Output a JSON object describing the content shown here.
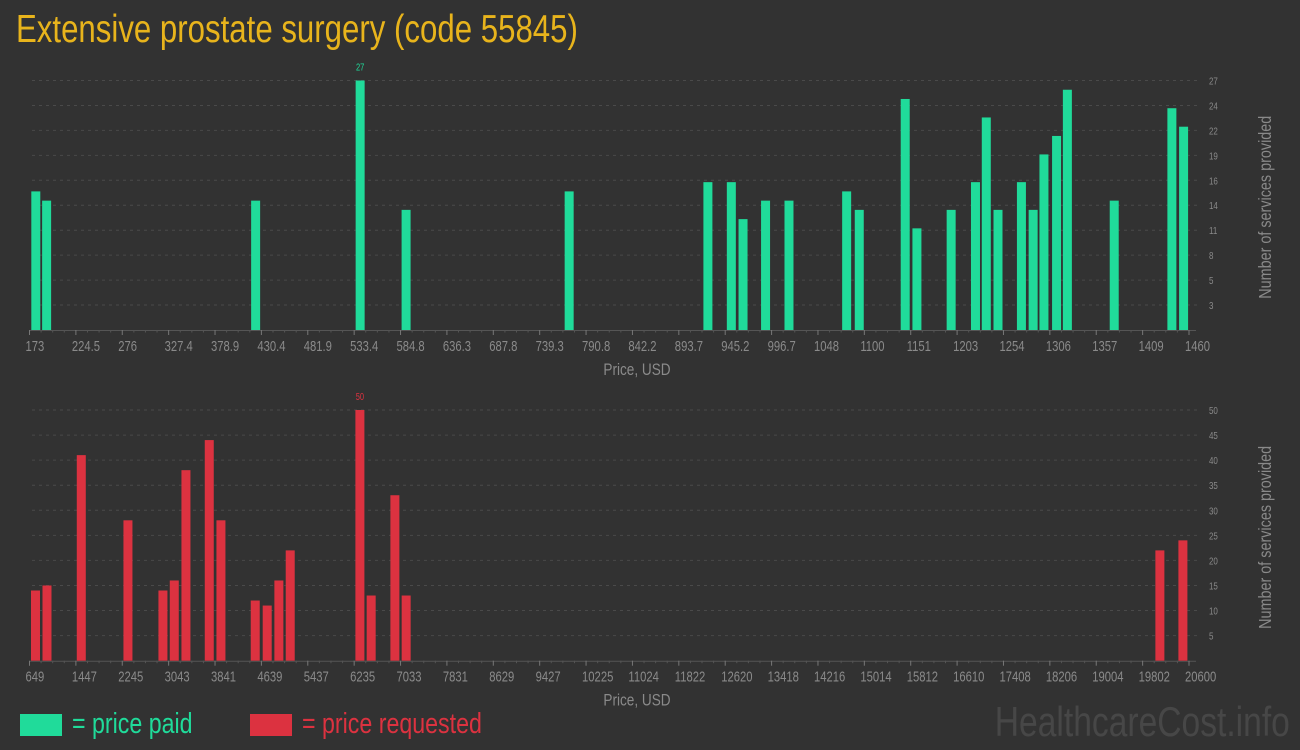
{
  "title": "Extensive prostate surgery (code 55845)",
  "legend": [
    {
      "label": "= price paid",
      "color": "#20db9a"
    },
    {
      "label": "= price requested",
      "color": "#dc3240"
    }
  ],
  "watermark": "HealthcareCost.info",
  "chart_data": [
    {
      "type": "bar",
      "series_name": "price paid",
      "color": "#20db9a",
      "xlabel": "Price, USD",
      "ylabel": "Number of services provided",
      "xlim": [
        173,
        1460
      ],
      "ylim": [
        0,
        27
      ],
      "grid": true,
      "x_tick_labels": [
        "173",
        "224.5",
        "276",
        "327.4",
        "378.9",
        "430.4",
        "481.9",
        "533.4",
        "584.8",
        "636.3",
        "687.8",
        "739.3",
        "790.8",
        "842.2",
        "893.7",
        "945.2",
        "996.7",
        "1048",
        "1100",
        "1151",
        "1203",
        "1254",
        "1306",
        "1357",
        "1409",
        "1460"
      ],
      "y_tick_labels": [
        "3",
        "5",
        "8",
        "11",
        "14",
        "16",
        "19",
        "22",
        "24",
        "27"
      ],
      "y_tick_values": [
        2.7,
        5.4,
        8.1,
        10.8,
        13.5,
        16.2,
        18.9,
        21.6,
        24.3,
        27
      ],
      "max_label": "27",
      "x": [
        180,
        192,
        424,
        540,
        591,
        772,
        926,
        952,
        965,
        990,
        1016,
        1080,
        1094,
        1145,
        1158,
        1196,
        1223,
        1235,
        1248,
        1274,
        1287,
        1299,
        1313,
        1325,
        1377,
        1441,
        1454
      ],
      "values": [
        15,
        14,
        14,
        27,
        13,
        15,
        16,
        16,
        12,
        14,
        14,
        15,
        13,
        25,
        11,
        13,
        16,
        23,
        13,
        16,
        13,
        19,
        21,
        26,
        14,
        24,
        22
      ]
    },
    {
      "type": "bar",
      "series_name": "price requested",
      "color": "#dc3240",
      "xlabel": "Price, USD",
      "ylabel": "Number of services provided",
      "xlim": [
        649,
        20600
      ],
      "ylim": [
        0,
        50
      ],
      "grid": true,
      "x_tick_labels": [
        "649",
        "1447",
        "2245",
        "3043",
        "3841",
        "4639",
        "5437",
        "6235",
        "7033",
        "7831",
        "8629",
        "9427",
        "10225",
        "11024",
        "11822",
        "12620",
        "13418",
        "14216",
        "15014",
        "15812",
        "16610",
        "17408",
        "18206",
        "19004",
        "19802",
        "20600"
      ],
      "y_tick_labels": [
        "5",
        "10",
        "15",
        "20",
        "25",
        "30",
        "35",
        "40",
        "45",
        "50"
      ],
      "y_tick_values": [
        5,
        10,
        15,
        20,
        25,
        30,
        35,
        40,
        45,
        50
      ],
      "max_label": "50",
      "x": [
        752,
        950,
        1540,
        2343,
        2945,
        3140,
        3341,
        3742,
        3943,
        4533,
        4739,
        4940,
        5135,
        6334,
        6528,
        6936,
        7130,
        20099,
        20495
      ],
      "values": [
        14,
        15,
        41,
        28,
        14,
        16,
        38,
        44,
        28,
        12,
        11,
        16,
        22,
        50,
        13,
        33,
        13,
        22,
        24
      ]
    }
  ]
}
